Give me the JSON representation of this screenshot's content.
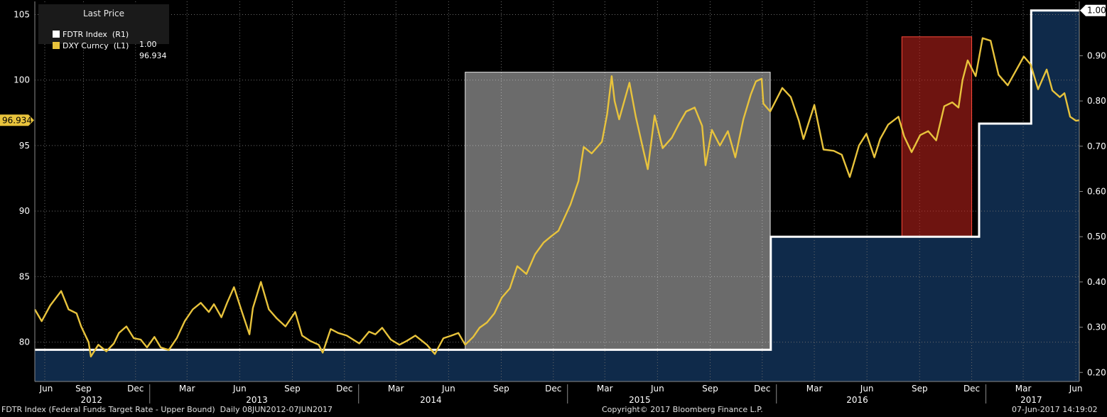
{
  "legend": {
    "title": "Last Price",
    "items": [
      {
        "label": "FDTR Index  (R1)",
        "value": "1.00",
        "color": "#ffffff"
      },
      {
        "label": "DXY Curncy  (L1)",
        "value": "96.934",
        "color": "#e8c33c"
      }
    ]
  },
  "footer": {
    "left": "FDTR Index (Federal Funds Target Rate - Upper Bound)  Daily 08JUN2012-07JUN2017",
    "center": "Copyright© 2017 Bloomberg Finance L.P.",
    "right": "07-Jun-2017 14:19:02"
  },
  "chart_data": {
    "type": "line",
    "x_range": [
      "2012-06-08",
      "2017-06-07"
    ],
    "left_axis": {
      "ylim": [
        77,
        106
      ],
      "ticks": [
        80,
        85,
        90,
        95,
        100,
        105
      ],
      "last_value_label": "96.934",
      "last_value": 96.934
    },
    "right_axis": {
      "ylim": [
        0.18,
        1.02
      ],
      "ticks": [
        "0.20",
        "0.30",
        "0.40",
        "0.50",
        "0.60",
        "0.70",
        "0.80",
        "0.90",
        "1.00"
      ],
      "last_value_label": "1.00",
      "last_value": 1.0
    },
    "x_month_ticks": [
      "Jun",
      "Sep",
      "Dec",
      "Mar",
      "Jun",
      "Sep",
      "Dec",
      "Mar",
      "Jun",
      "Sep",
      "Dec",
      "Mar",
      "Jun",
      "Sep",
      "Dec",
      "Mar",
      "Jun",
      "Sep",
      "Dec",
      "Mar",
      "Jun"
    ],
    "x_year_labels": [
      "2012",
      "2013",
      "2014",
      "2015",
      "2016",
      "2017"
    ],
    "grid": true,
    "series": [
      {
        "name": "DXY Curncy",
        "axis": "left",
        "color": "#e8c33c",
        "points": [
          [
            "2012-06-08",
            82.5
          ],
          [
            "2012-06-20",
            81.6
          ],
          [
            "2012-07-05",
            82.8
          ],
          [
            "2012-07-24",
            83.9
          ],
          [
            "2012-08-06",
            82.5
          ],
          [
            "2012-08-20",
            82.2
          ],
          [
            "2012-08-28",
            81.2
          ],
          [
            "2012-09-10",
            80.0
          ],
          [
            "2012-09-14",
            78.9
          ],
          [
            "2012-09-27",
            79.8
          ],
          [
            "2012-10-11",
            79.3
          ],
          [
            "2012-10-24",
            79.9
          ],
          [
            "2012-11-02",
            80.7
          ],
          [
            "2012-11-15",
            81.2
          ],
          [
            "2012-11-28",
            80.3
          ],
          [
            "2012-12-10",
            80.2
          ],
          [
            "2012-12-21",
            79.6
          ],
          [
            "2013-01-03",
            80.4
          ],
          [
            "2013-01-14",
            79.6
          ],
          [
            "2013-01-28",
            79.4
          ],
          [
            "2013-02-11",
            80.3
          ],
          [
            "2013-02-25",
            81.6
          ],
          [
            "2013-03-11",
            82.5
          ],
          [
            "2013-03-25",
            83.0
          ],
          [
            "2013-04-08",
            82.3
          ],
          [
            "2013-04-17",
            82.9
          ],
          [
            "2013-04-30",
            81.9
          ],
          [
            "2013-05-10",
            83.0
          ],
          [
            "2013-05-22",
            84.2
          ],
          [
            "2013-06-05",
            82.3
          ],
          [
            "2013-06-18",
            80.6
          ],
          [
            "2013-06-24",
            82.6
          ],
          [
            "2013-07-08",
            84.6
          ],
          [
            "2013-07-22",
            82.5
          ],
          [
            "2013-08-05",
            81.8
          ],
          [
            "2013-08-20",
            81.2
          ],
          [
            "2013-09-06",
            82.3
          ],
          [
            "2013-09-18",
            80.5
          ],
          [
            "2013-10-02",
            80.1
          ],
          [
            "2013-10-17",
            79.8
          ],
          [
            "2013-10-24",
            79.2
          ],
          [
            "2013-11-07",
            81.0
          ],
          [
            "2013-11-20",
            80.7
          ],
          [
            "2013-12-05",
            80.5
          ],
          [
            "2013-12-27",
            79.9
          ],
          [
            "2014-01-13",
            80.8
          ],
          [
            "2014-01-24",
            80.6
          ],
          [
            "2014-02-05",
            81.1
          ],
          [
            "2014-02-20",
            80.2
          ],
          [
            "2014-03-07",
            79.8
          ],
          [
            "2014-03-20",
            80.1
          ],
          [
            "2014-04-04",
            80.5
          ],
          [
            "2014-04-24",
            79.8
          ],
          [
            "2014-05-08",
            79.1
          ],
          [
            "2014-05-23",
            80.3
          ],
          [
            "2014-06-06",
            80.5
          ],
          [
            "2014-06-18",
            80.7
          ],
          [
            "2014-06-30",
            79.8
          ],
          [
            "2014-07-14",
            80.4
          ],
          [
            "2014-07-25",
            81.1
          ],
          [
            "2014-08-07",
            81.5
          ],
          [
            "2014-08-20",
            82.2
          ],
          [
            "2014-09-02",
            83.4
          ],
          [
            "2014-09-16",
            84.1
          ],
          [
            "2014-09-29",
            85.8
          ],
          [
            "2014-10-15",
            85.2
          ],
          [
            "2014-10-30",
            86.7
          ],
          [
            "2014-11-14",
            87.6
          ],
          [
            "2014-11-28",
            88.1
          ],
          [
            "2014-12-10",
            88.5
          ],
          [
            "2014-12-31",
            90.5
          ],
          [
            "2015-01-14",
            92.3
          ],
          [
            "2015-01-23",
            94.9
          ],
          [
            "2015-02-06",
            94.4
          ],
          [
            "2015-02-24",
            95.3
          ],
          [
            "2015-03-05",
            97.4
          ],
          [
            "2015-03-13",
            100.3
          ],
          [
            "2015-03-18",
            98.4
          ],
          [
            "2015-03-26",
            97.0
          ],
          [
            "2015-04-13",
            99.8
          ],
          [
            "2015-04-24",
            97.2
          ],
          [
            "2015-05-06",
            94.9
          ],
          [
            "2015-05-15",
            93.2
          ],
          [
            "2015-05-27",
            97.3
          ],
          [
            "2015-06-10",
            94.8
          ],
          [
            "2015-06-26",
            95.6
          ],
          [
            "2015-07-09",
            96.7
          ],
          [
            "2015-07-21",
            97.6
          ],
          [
            "2015-08-05",
            97.9
          ],
          [
            "2015-08-18",
            96.5
          ],
          [
            "2015-08-24",
            93.5
          ],
          [
            "2015-09-04",
            96.2
          ],
          [
            "2015-09-18",
            95.0
          ],
          [
            "2015-10-02",
            96.1
          ],
          [
            "2015-10-15",
            94.1
          ],
          [
            "2015-10-29",
            97.0
          ],
          [
            "2015-11-11",
            98.9
          ],
          [
            "2015-11-20",
            99.9
          ],
          [
            "2015-11-30",
            100.1
          ],
          [
            "2015-12-03",
            98.2
          ],
          [
            "2015-12-15",
            97.6
          ],
          [
            "2016-01-05",
            99.4
          ],
          [
            "2016-01-20",
            98.7
          ],
          [
            "2016-02-03",
            96.9
          ],
          [
            "2016-02-11",
            95.5
          ],
          [
            "2016-03-01",
            98.1
          ],
          [
            "2016-03-17",
            94.7
          ],
          [
            "2016-04-04",
            94.6
          ],
          [
            "2016-04-18",
            94.3
          ],
          [
            "2016-05-02",
            92.6
          ],
          [
            "2016-05-18",
            95.0
          ],
          [
            "2016-05-31",
            95.9
          ],
          [
            "2016-06-14",
            94.1
          ],
          [
            "2016-06-24",
            95.5
          ],
          [
            "2016-07-08",
            96.6
          ],
          [
            "2016-07-26",
            97.2
          ],
          [
            "2016-08-05",
            95.7
          ],
          [
            "2016-08-18",
            94.5
          ],
          [
            "2016-09-02",
            95.8
          ],
          [
            "2016-09-16",
            96.1
          ],
          [
            "2016-09-30",
            95.4
          ],
          [
            "2016-10-14",
            98.0
          ],
          [
            "2016-10-28",
            98.3
          ],
          [
            "2016-11-08",
            97.9
          ],
          [
            "2016-11-15",
            100.0
          ],
          [
            "2016-11-24",
            101.5
          ],
          [
            "2016-12-08",
            100.3
          ],
          [
            "2016-12-20",
            103.2
          ],
          [
            "2017-01-03",
            103.0
          ],
          [
            "2017-01-17",
            100.4
          ],
          [
            "2017-02-02",
            99.6
          ],
          [
            "2017-02-16",
            100.7
          ],
          [
            "2017-03-02",
            101.8
          ],
          [
            "2017-03-14",
            101.2
          ],
          [
            "2017-03-27",
            99.3
          ],
          [
            "2017-04-11",
            100.8
          ],
          [
            "2017-04-21",
            99.2
          ],
          [
            "2017-05-04",
            98.7
          ],
          [
            "2017-05-12",
            99.0
          ],
          [
            "2017-05-22",
            97.2
          ],
          [
            "2017-06-01",
            96.9
          ],
          [
            "2017-06-07",
            96.934
          ]
        ]
      },
      {
        "name": "FDTR Index",
        "axis": "right",
        "color": "#ffffff",
        "step": true,
        "points": [
          [
            "2012-06-08",
            0.25
          ],
          [
            "2015-12-16",
            0.5
          ],
          [
            "2016-12-14",
            0.75
          ],
          [
            "2017-03-15",
            1.0
          ],
          [
            "2017-06-07",
            1.0
          ]
        ]
      }
    ],
    "highlights": [
      {
        "from": "2014-06-30",
        "to": "2015-12-15",
        "top": 100.6,
        "color": "#ffffff",
        "opacity": 0.42
      },
      {
        "from": "2016-08-01",
        "to": "2016-12-01",
        "top": 103.3,
        "color": "#c8241e",
        "opacity": 0.55
      }
    ]
  }
}
